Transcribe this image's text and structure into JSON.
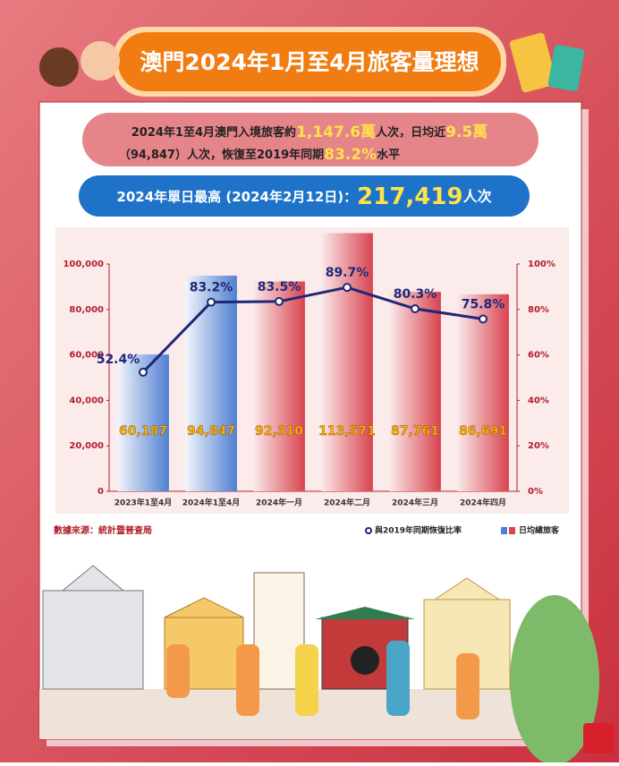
{
  "header": {
    "title": "澳門2024年1月至4月旅客量理想"
  },
  "summary": {
    "line1": [
      "2024年1至4月澳門入境旅客約",
      "1,147.6萬",
      "人次，日均近",
      "9.5萬"
    ],
    "line2": [
      "（94,847）人次，恢復至2019年同期",
      "83.2%",
      "水平"
    ]
  },
  "highlight": {
    "label": "2024年單日最高 (2024年2月12日)：",
    "value": "217,419",
    "unit": "人次"
  },
  "source": "數據來源：統計暨普查局",
  "chart_data": {
    "type": "bar",
    "categories": [
      "2023年1至4月",
      "2024年1至4月",
      "2024年一月",
      "2024年二月",
      "2024年三月",
      "2024年四月"
    ],
    "series": [
      {
        "name": "日均總旅客",
        "type": "bar",
        "colors": [
          "#4f7fd0",
          "#4f7fd0",
          "#d8434e",
          "#d8434e",
          "#d8434e",
          "#d8434e"
        ],
        "values": [
          60187,
          94847,
          92310,
          113571,
          87761,
          86691
        ],
        "value_labels": [
          "60,187",
          "94,847",
          "92,310",
          "113,571",
          "87,761",
          "86,691"
        ]
      },
      {
        "name": "與2019年同期恢復比率",
        "type": "line",
        "axis": "y2",
        "color": "#1f2878",
        "values": [
          52.4,
          83.2,
          83.5,
          89.7,
          80.3,
          75.8
        ],
        "value_labels": [
          "52.4%",
          "83.2%",
          "83.5%",
          "89.7%",
          "80.3%",
          "75.8%"
        ]
      }
    ],
    "ylim": [
      0,
      100000
    ],
    "yticks": [
      0,
      {
        "value": 20000,
        "label": "20,000"
      },
      {
        "value": 40000,
        "label": "40,000"
      },
      {
        "value": 60000,
        "label": "60,000"
      },
      {
        "value": 80000,
        "label": "80,000"
      },
      {
        "value": 100000,
        "label": "100,000"
      }
    ],
    "y2lim": [
      0,
      100
    ],
    "y2ticks": [
      {
        "value": 0,
        "label": "0%"
      },
      {
        "value": 20,
        "label": "20%"
      },
      {
        "value": 40,
        "label": "40%"
      },
      {
        "value": 60,
        "label": "60%"
      },
      {
        "value": 80,
        "label": "80%"
      },
      {
        "value": 100,
        "label": "100%"
      }
    ],
    "grid": false
  }
}
